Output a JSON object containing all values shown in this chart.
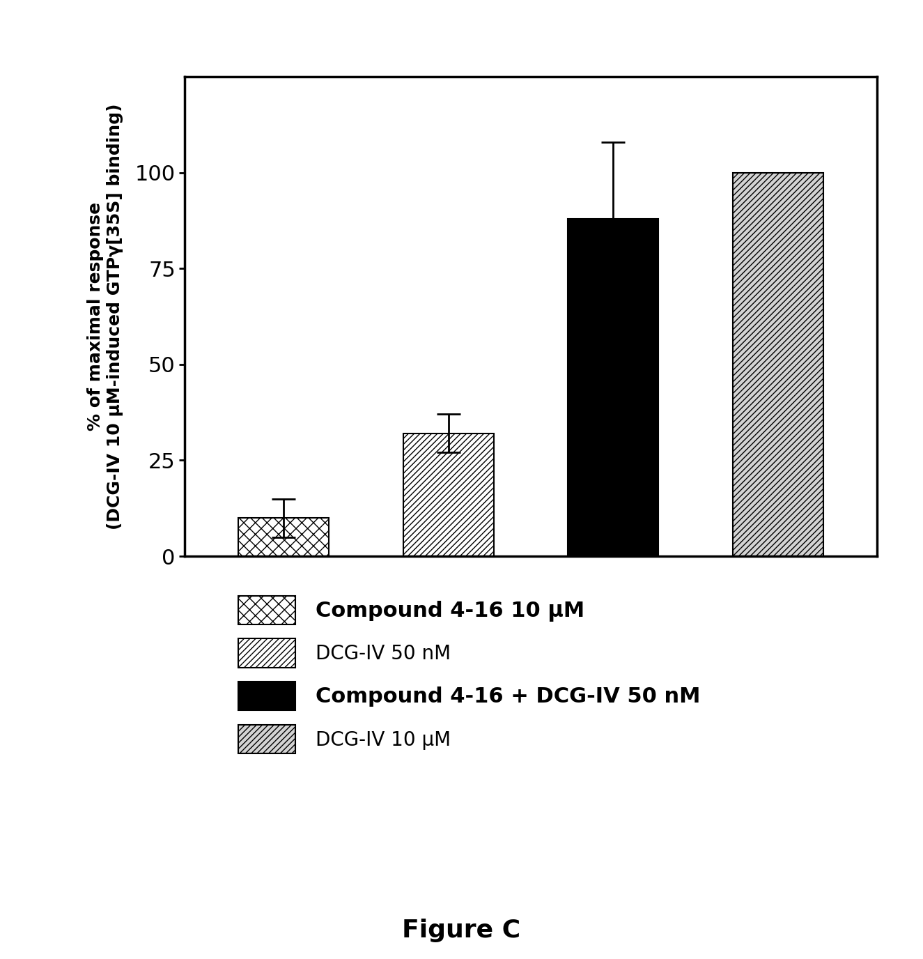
{
  "categories": [
    "Compound 4-16 10 μM",
    "DCG-IV 50 nM",
    "Compound 4-16 + DCG-IV 50 nM",
    "DCG-IV 10 μM"
  ],
  "values": [
    10,
    32,
    88,
    100
  ],
  "errors": [
    5,
    5,
    20,
    0
  ],
  "ylabel_line1": "% of maximal response",
  "ylabel_line2": "(DCG-IV 10 μM-induced GTPγ[",
  "ylabel_line2b": "35",
  "ylabel_line2c": "S] binding)",
  "figure_label": "Figure C",
  "ylim": [
    0,
    125
  ],
  "yticks": [
    0,
    25,
    50,
    75,
    100
  ],
  "background_color": "#ffffff",
  "legend_labels": [
    "Compound 4-16 10 μM",
    "DCG-IV 50 nM",
    "Compound 4-16 + DCG-IV 50 nM",
    "DCG-IV 10 μM"
  ],
  "legend_bold": [
    true,
    false,
    true,
    false
  ],
  "bar_width": 0.55,
  "bar_spacing": 1.0
}
